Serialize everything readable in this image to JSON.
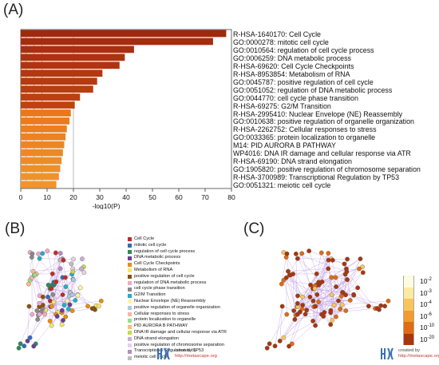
{
  "panels": {
    "a": "(A)",
    "b": "(B)",
    "c": "(C)"
  },
  "chart_data": {
    "type": "bar",
    "orientation": "horizontal",
    "xlabel": "-log10(P)",
    "xlim": [
      0,
      80
    ],
    "xticks": [
      0,
      10,
      20,
      30,
      40,
      50,
      60,
      70,
      80
    ],
    "xtick_labels": [
      "0",
      "10",
      "20",
      "30",
      "40",
      "50",
      "60",
      "70",
      "80"
    ],
    "categories": [
      "R-HSA-1640170: Cell Cycle",
      "GO:0000278: mitotic cell cycle",
      "GO:0010564: regulation of cell cycle process",
      "GO:0006259: DNA metabolic process",
      "R-HSA-69620: Cell Cycle Checkpoints",
      "R-HSA-8953854: Metabolism of RNA",
      "GO:0045787: positive regulation of cell cycle",
      "GO:0051052: regulation of DNA metabolic process",
      "GO:0044770: cell cycle phase transition",
      "R-HSA-69275: G2/M Transition",
      "R-HSA-2995410: Nuclear Envelope (NE) Reassembly",
      "GO:0010638: positive regulation of organelle organization",
      "R-HSA-2262752: Cellular responses to stress",
      "GO:0033365: protein localization to organelle",
      "M14: PID AURORA B PATHWAY",
      "WP4016: DNA IR damage and cellular response via ATR",
      "R-HSA-69190: DNA strand elongation",
      "GO:1905820: positive regulation of chromosome separation",
      "R-HSA-3700989: Transcriptional Regulation by TP53",
      "GO:0051321: meiotic cell cycle"
    ],
    "values": [
      78,
      73,
      43,
      39.5,
      37.5,
      31,
      29,
      27.5,
      22.5,
      20.5,
      19,
      18.5,
      17.5,
      17,
      16.5,
      16,
      15.5,
      15,
      14.5,
      13.5
    ],
    "bar_colors": [
      "#9e2a0b",
      "#a32d0c",
      "#a8300d",
      "#ad330e",
      "#b0350e",
      "#b4380f",
      "#b73a0f",
      "#ba3d10",
      "#bd3f10",
      "#c04210",
      "#e8781d",
      "#e97c1f",
      "#ea8021",
      "#eb8322",
      "#ec8624",
      "#ec8925",
      "#ed8c27",
      "#ee8f28",
      "#ef922a",
      "#f0952c"
    ],
    "gridlines": [
      2,
      5,
      8,
      20
    ],
    "grid": true
  },
  "legend_b": {
    "items": [
      {
        "label": "Cell Cycle",
        "color": "#c62828"
      },
      {
        "label": "mitotic cell cycle",
        "color": "#2e6fb5"
      },
      {
        "label": "regulation of cell cycle process",
        "color": "#2e8b57"
      },
      {
        "label": "DNA metabolic process",
        "color": "#6a3d9a"
      },
      {
        "label": "Cell Cycle Checkpoints",
        "color": "#f08c00"
      },
      {
        "label": "Metabolism of RNA",
        "color": "#f5e663"
      },
      {
        "label": "positive regulation of cell cycle",
        "color": "#8c510a"
      },
      {
        "label": "regulation of DNA metabolic process",
        "color": "#f4a6c8"
      },
      {
        "label": "cell cycle phase transition",
        "color": "#8a8a8a"
      },
      {
        "label": "G2/M Transition",
        "color": "#1fb0c8"
      },
      {
        "label": "Nuclear Envelope (NE) Reassembly",
        "color": "#fff3a0"
      },
      {
        "label": "positive regulation of organelle organization",
        "color": "#aec7e8"
      },
      {
        "label": "Cellular responses to stress",
        "color": "#f7b6a0"
      },
      {
        "label": "protein localization to organelle",
        "color": "#98df8a"
      },
      {
        "label": "PID AURORA B PATHWAY",
        "color": "#ffbb78"
      },
      {
        "label": "DNA IR damage and cellular response via ATR",
        "color": "#c5d94a"
      },
      {
        "label": "DNA strand elongation",
        "color": "#c5b0d5"
      },
      {
        "label": "positive regulation of chromosome separation",
        "color": "#e7cfe6"
      },
      {
        "label": "Transcriptional Regulation by TP53",
        "color": "#b28ec7"
      },
      {
        "label": "meiotic cell cycle",
        "color": "#bdbdbd"
      }
    ]
  },
  "legend_c": {
    "items": [
      {
        "label": "10",
        "exp": "-2",
        "color": "#fffbe0"
      },
      {
        "label": "10",
        "exp": "-3",
        "color": "#fde9a0"
      },
      {
        "label": "10",
        "exp": "-4",
        "color": "#f8c55c"
      },
      {
        "label": "10",
        "exp": "-6",
        "color": "#f29b2e"
      },
      {
        "label": "10",
        "exp": "-10",
        "color": "#e06b12"
      },
      {
        "label": "10",
        "exp": "-20",
        "color": "#a8360c"
      }
    ]
  },
  "credit": {
    "line1": "created by",
    "line2": "http://metascape.org"
  }
}
